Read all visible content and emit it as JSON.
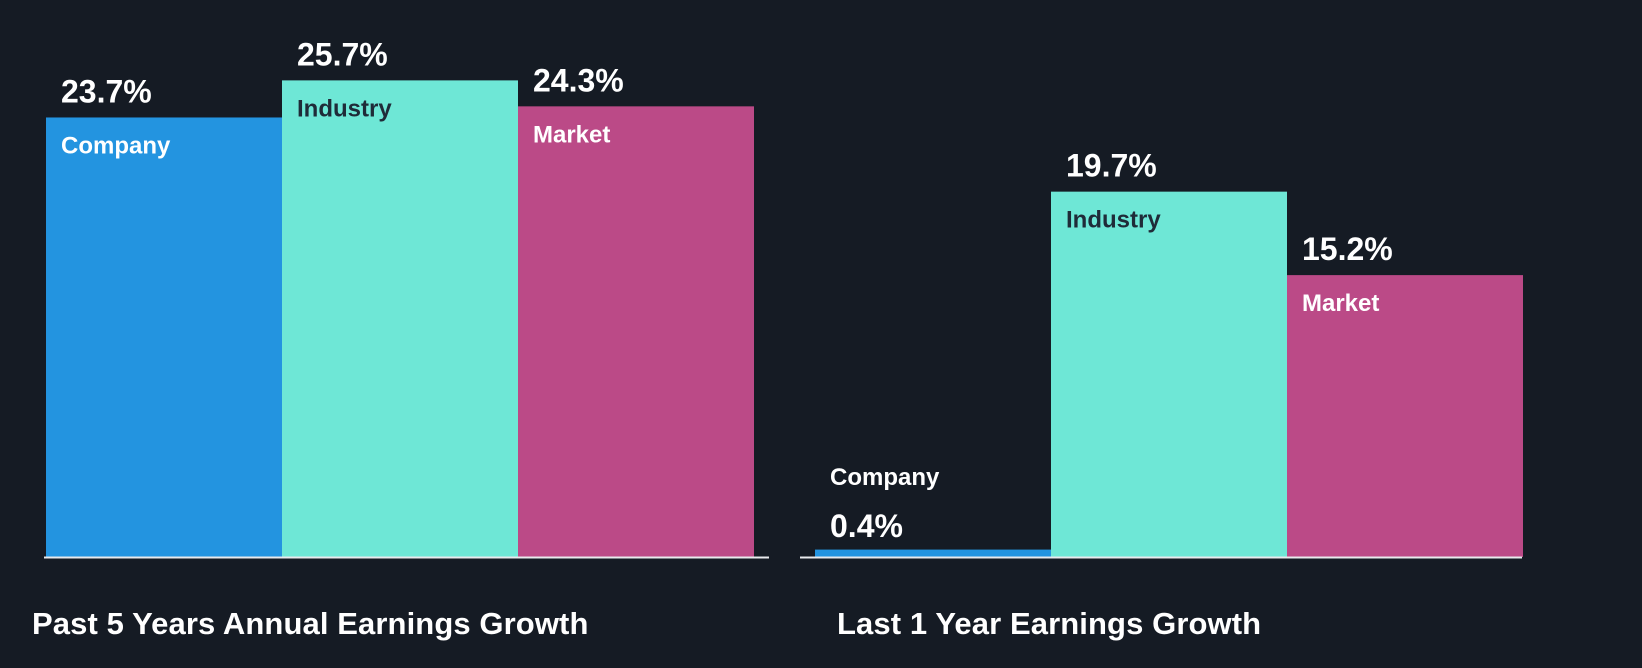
{
  "colors": {
    "background": "#151b24",
    "company": "#2394e0",
    "industry": "#6ee7d6",
    "market": "#bb4a87",
    "baseline": "#e8eaed",
    "text_light": "#ffffff",
    "text_dark": "#1f2b38"
  },
  "chart_data": [
    {
      "type": "bar",
      "title": "Past 5 Years Annual Earnings Growth",
      "categories": [
        "Company",
        "Industry",
        "Market"
      ],
      "values": [
        23.7,
        25.7,
        24.3
      ],
      "value_labels": [
        "23.7%",
        "25.7%",
        "24.3%"
      ],
      "ylim": [
        0,
        27.5
      ],
      "unit": "%",
      "bar_colors": [
        "#2394e0",
        "#6ee7d6",
        "#bb4a87"
      ],
      "grid": false,
      "legend": "none"
    },
    {
      "type": "bar",
      "title": "Last 1 Year Earnings Growth",
      "categories": [
        "Company",
        "Industry",
        "Market"
      ],
      "values": [
        0.4,
        19.7,
        15.2
      ],
      "value_labels": [
        "0.4%",
        "19.7%",
        "15.2%"
      ],
      "ylim": [
        0,
        27.5
      ],
      "unit": "%",
      "bar_colors": [
        "#2394e0",
        "#6ee7d6",
        "#bb4a87"
      ],
      "grid": false,
      "legend": "none"
    }
  ]
}
